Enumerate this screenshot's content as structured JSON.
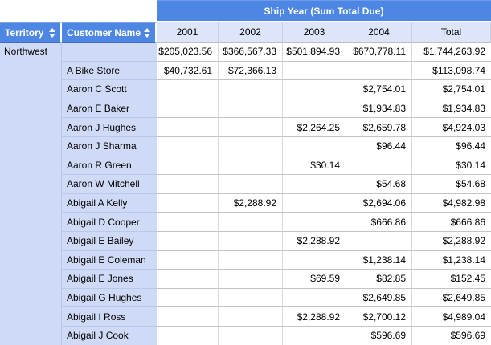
{
  "header": {
    "group_title": "Ship Year (Sum Total Due)",
    "row_headers": [
      {
        "label": "Territory",
        "icon": "sort-updown-icon"
      },
      {
        "label": "Customer Name",
        "icon": "sort-updown-icon"
      }
    ],
    "columns": [
      "2001",
      "2002",
      "2003",
      "2004",
      "Total"
    ]
  },
  "table": {
    "territory": "Northwest",
    "rows": [
      {
        "customer": "",
        "y2001": "$205,023.56",
        "y2002": "$366,567.33",
        "y2003": "$501,894.93",
        "y2004": "$670,778.11",
        "total": "$1,744,263.92"
      },
      {
        "customer": "A Bike Store",
        "y2001": "$40,732.61",
        "y2002": "$72,366.13",
        "y2003": "",
        "y2004": "",
        "total": "$113,098.74"
      },
      {
        "customer": "Aaron C Scott",
        "y2001": "",
        "y2002": "",
        "y2003": "",
        "y2004": "$2,754.01",
        "total": "$2,754.01"
      },
      {
        "customer": "Aaron E Baker",
        "y2001": "",
        "y2002": "",
        "y2003": "",
        "y2004": "$1,934.83",
        "total": "$1,934.83"
      },
      {
        "customer": "Aaron J Hughes",
        "y2001": "",
        "y2002": "",
        "y2003": "$2,264.25",
        "y2004": "$2,659.78",
        "total": "$4,924.03"
      },
      {
        "customer": "Aaron J Sharma",
        "y2001": "",
        "y2002": "",
        "y2003": "",
        "y2004": "$96.44",
        "total": "$96.44"
      },
      {
        "customer": "Aaron R Green",
        "y2001": "",
        "y2002": "",
        "y2003": "$30.14",
        "y2004": "",
        "total": "$30.14"
      },
      {
        "customer": "Aaron W Mitchell",
        "y2001": "",
        "y2002": "",
        "y2003": "",
        "y2004": "$54.68",
        "total": "$54.68"
      },
      {
        "customer": "Abigail A Kelly",
        "y2001": "",
        "y2002": "$2,288.92",
        "y2003": "",
        "y2004": "$2,694.06",
        "total": "$4,982.98"
      },
      {
        "customer": "Abigail D Cooper",
        "y2001": "",
        "y2002": "",
        "y2003": "",
        "y2004": "$666.86",
        "total": "$666.86"
      },
      {
        "customer": "Abigail E Bailey",
        "y2001": "",
        "y2002": "",
        "y2003": "$2,288.92",
        "y2004": "",
        "total": "$2,288.92"
      },
      {
        "customer": "Abigail E Coleman",
        "y2001": "",
        "y2002": "",
        "y2003": "",
        "y2004": "$1,238.14",
        "total": "$1,238.14"
      },
      {
        "customer": "Abigail E Jones",
        "y2001": "",
        "y2002": "",
        "y2003": "$69.59",
        "y2004": "$82.85",
        "total": "$152.45"
      },
      {
        "customer": "Abigail G Hughes",
        "y2001": "",
        "y2002": "",
        "y2003": "",
        "y2004": "$2,649.85",
        "total": "$2,649.85"
      },
      {
        "customer": "Abigail I Ross",
        "y2001": "",
        "y2002": "",
        "y2003": "$2,288.92",
        "y2004": "$2,700.12",
        "total": "$4,989.04"
      },
      {
        "customer": "Abigail J Cook",
        "y2001": "",
        "y2002": "",
        "y2003": "",
        "y2004": "$596.69",
        "total": "$596.69"
      }
    ]
  },
  "colors": {
    "header_blue": "#4e86e4",
    "year_header_bg": "#dce5f9",
    "row_header_bg": "#cfdaf6",
    "data_bg": "#ffffff"
  }
}
